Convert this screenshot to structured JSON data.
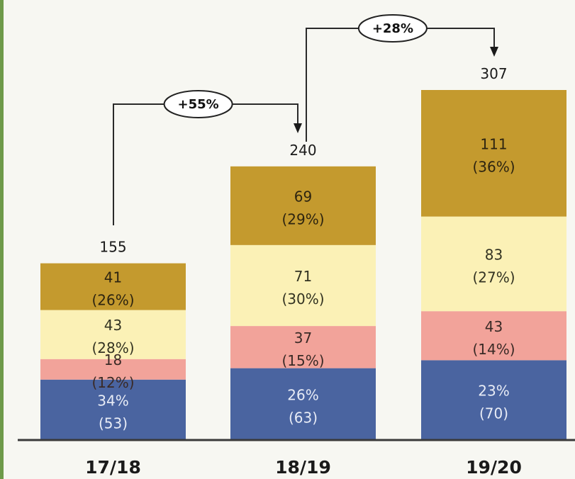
{
  "chart_data": {
    "type": "bar",
    "stacked": true,
    "categories": [
      "17/18",
      "18/19",
      "19/20"
    ],
    "totals": [
      155,
      240,
      307
    ],
    "series": [
      {
        "values": [
          53,
          63,
          70
        ],
        "labels": [
          [
            "34%",
            "(53)"
          ],
          [
            "26%",
            "(63)"
          ],
          [
            "23%",
            "(70)"
          ]
        ]
      },
      {
        "values": [
          18,
          37,
          43
        ],
        "labels": [
          [
            "18",
            "(12%)"
          ],
          [
            "37",
            "(15%)"
          ],
          [
            "43",
            "(14%)"
          ]
        ]
      },
      {
        "values": [
          43,
          71,
          83
        ],
        "labels": [
          [
            "43",
            "(28%)"
          ],
          [
            "71",
            "(30%)"
          ],
          [
            "83",
            "(27%)"
          ]
        ]
      },
      {
        "values": [
          41,
          69,
          111
        ],
        "labels": [
          [
            "41",
            "(26%)"
          ],
          [
            "69",
            "(29%)"
          ],
          [
            "111",
            "(36%)"
          ]
        ]
      }
    ],
    "growth": [
      {
        "from": "17/18",
        "to": "18/19",
        "label": "+55%"
      },
      {
        "from": "18/19",
        "to": "19/20",
        "label": "+28%"
      }
    ],
    "ylim": [
      0,
      307
    ]
  },
  "colors": {
    "series": [
      "#4a64a0",
      "#f2a39a",
      "#fbf1b6",
      "#c49a2e"
    ],
    "label_text": [
      "#e8ecf6",
      "#3a2a26",
      "#333322",
      "#2d2410"
    ],
    "axis": "#3a3a3a",
    "border": "#6e9a4a",
    "background": "#f7f7f2"
  }
}
